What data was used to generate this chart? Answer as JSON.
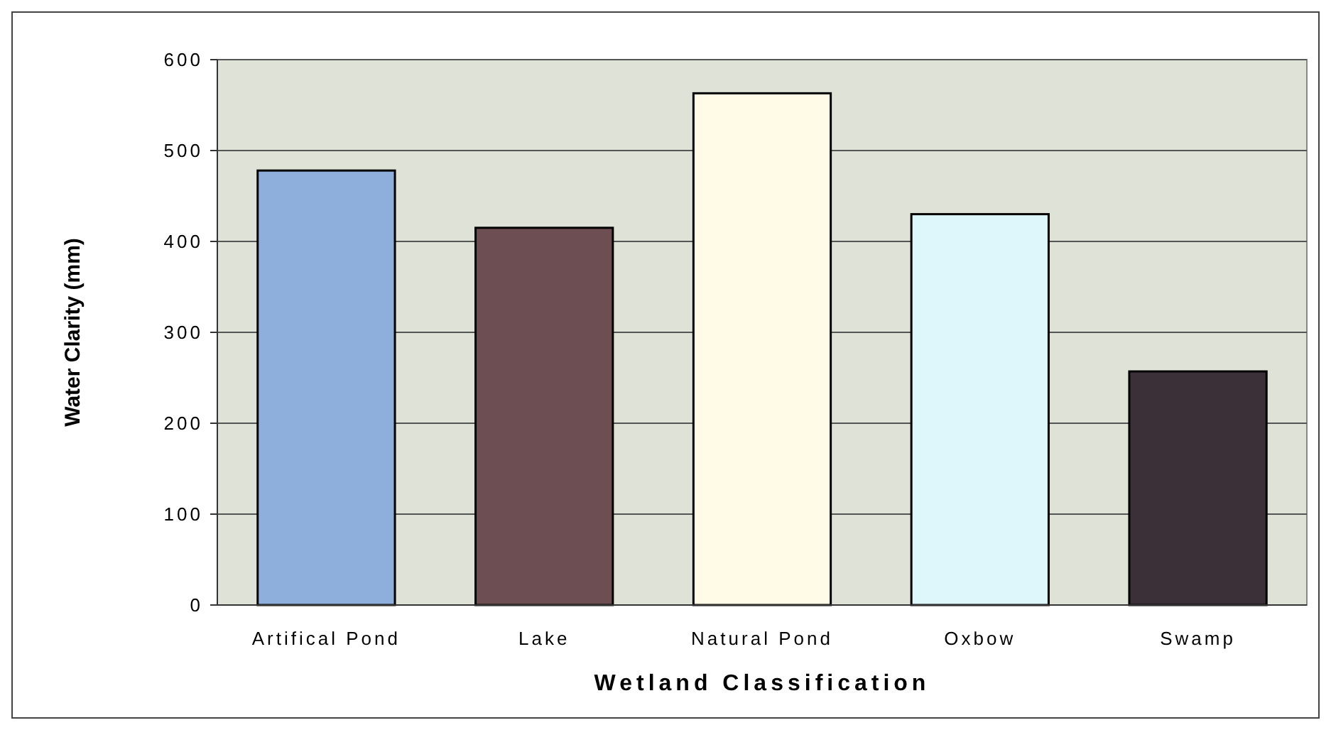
{
  "chart_data": {
    "type": "bar",
    "xlabel": "Wetland Classification",
    "ylabel": "Water Clarity (mm)",
    "categories": [
      "Artifical Pond",
      "Lake",
      "Natural Pond",
      "Oxbow",
      "Swamp"
    ],
    "values": [
      478,
      415,
      563,
      430,
      257
    ],
    "colors": [
      "#8eaedc",
      "#6d4e52",
      "#fffbe6",
      "#def7fa",
      "#3b3038"
    ],
    "ylim": [
      0,
      600
    ],
    "yticks": [
      0,
      100,
      200,
      300,
      400,
      500,
      600
    ],
    "grid": "y"
  }
}
